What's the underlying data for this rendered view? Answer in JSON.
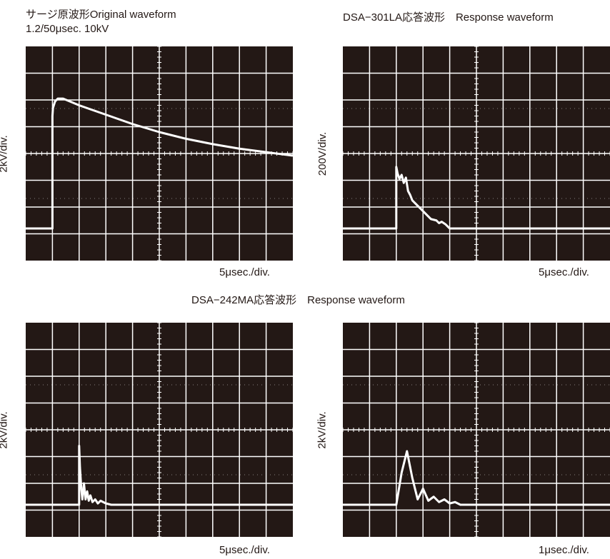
{
  "header": {
    "top_left_title": "サージ原波形Original waveform",
    "top_left_subtitle": "1.2/50μsec. 10kV",
    "top_right_title": "DSA−301LA応答波形　Response waveform",
    "bottom_title": "DSA−242MA応答波形　Response waveform"
  },
  "colors": {
    "screen": "#231815",
    "grid": "#ffffff",
    "trace": "#ffffff"
  },
  "chart_data": [
    {
      "type": "line",
      "title": "サージ原波形Original waveform",
      "subtitle": "1.2/50μsec. 10kV",
      "ylabel": "2kV/div.",
      "xlabel": "5μsec./div.",
      "xlim": [
        0,
        10
      ],
      "ylim": [
        -4,
        4
      ],
      "grid": true,
      "series": [
        {
          "x": [
            0,
            1.0,
            1.0,
            1.02,
            1.1,
            1.2,
            1.4,
            2,
            3,
            4,
            5,
            6,
            7,
            8,
            9,
            10
          ],
          "y": [
            -2.8,
            -2.8,
            1.4,
            1.7,
            1.95,
            2.05,
            2.05,
            1.8,
            1.45,
            1.1,
            0.8,
            0.55,
            0.35,
            0.18,
            0.05,
            -0.08
          ]
        }
      ]
    },
    {
      "type": "line",
      "title": "DSA−301LA応答波形　Response waveform",
      "ylabel": "200V/div.",
      "xlabel": "5μsec./div.",
      "xlim": [
        0,
        10
      ],
      "ylim": [
        -4,
        4
      ],
      "grid": true,
      "series": [
        {
          "x": [
            0,
            2.0,
            2.0,
            2.05,
            2.12,
            2.2,
            2.28,
            2.36,
            2.44,
            2.52,
            2.6,
            2.7,
            2.9,
            3.1,
            3.3,
            3.5,
            3.6,
            3.7,
            3.85,
            3.95,
            4.0,
            10
          ],
          "y": [
            -2.8,
            -2.8,
            -0.5,
            -0.75,
            -0.95,
            -0.8,
            -1.1,
            -0.9,
            -1.4,
            -1.55,
            -1.75,
            -1.85,
            -2.05,
            -2.25,
            -2.45,
            -2.5,
            -2.6,
            -2.55,
            -2.65,
            -2.75,
            -2.8,
            -2.8
          ]
        }
      ]
    },
    {
      "type": "line",
      "title": "DSA−242MA応答波形　Response waveform",
      "ylabel": "2kV/div.",
      "xlabel": "5μsec./div.",
      "xlim": [
        0,
        10
      ],
      "ylim": [
        -4,
        4
      ],
      "grid": true,
      "series": [
        {
          "x": [
            0,
            2.0,
            2.0,
            2.03,
            2.08,
            2.12,
            2.18,
            2.24,
            2.3,
            2.36,
            2.42,
            2.5,
            2.6,
            2.7,
            2.8,
            3.0,
            3.2,
            10
          ],
          "y": [
            -2.8,
            -2.8,
            -0.6,
            -1.4,
            -2.2,
            -2.6,
            -2.0,
            -2.6,
            -2.3,
            -2.65,
            -2.45,
            -2.7,
            -2.6,
            -2.75,
            -2.65,
            -2.75,
            -2.8,
            -2.8
          ]
        }
      ]
    },
    {
      "type": "line",
      "ylabel": "2kV/div.",
      "xlabel": "1μsec./div.",
      "xlim": [
        0,
        10
      ],
      "ylim": [
        -4,
        4
      ],
      "grid": true,
      "series": [
        {
          "x": [
            0,
            2.0,
            2.2,
            2.4,
            2.6,
            2.8,
            3.0,
            3.2,
            3.4,
            3.6,
            3.8,
            4.0,
            4.2,
            4.4,
            10
          ],
          "y": [
            -2.8,
            -2.8,
            -1.6,
            -0.8,
            -1.8,
            -2.6,
            -2.2,
            -2.65,
            -2.5,
            -2.7,
            -2.6,
            -2.75,
            -2.7,
            -2.8,
            -2.8
          ]
        }
      ]
    }
  ]
}
